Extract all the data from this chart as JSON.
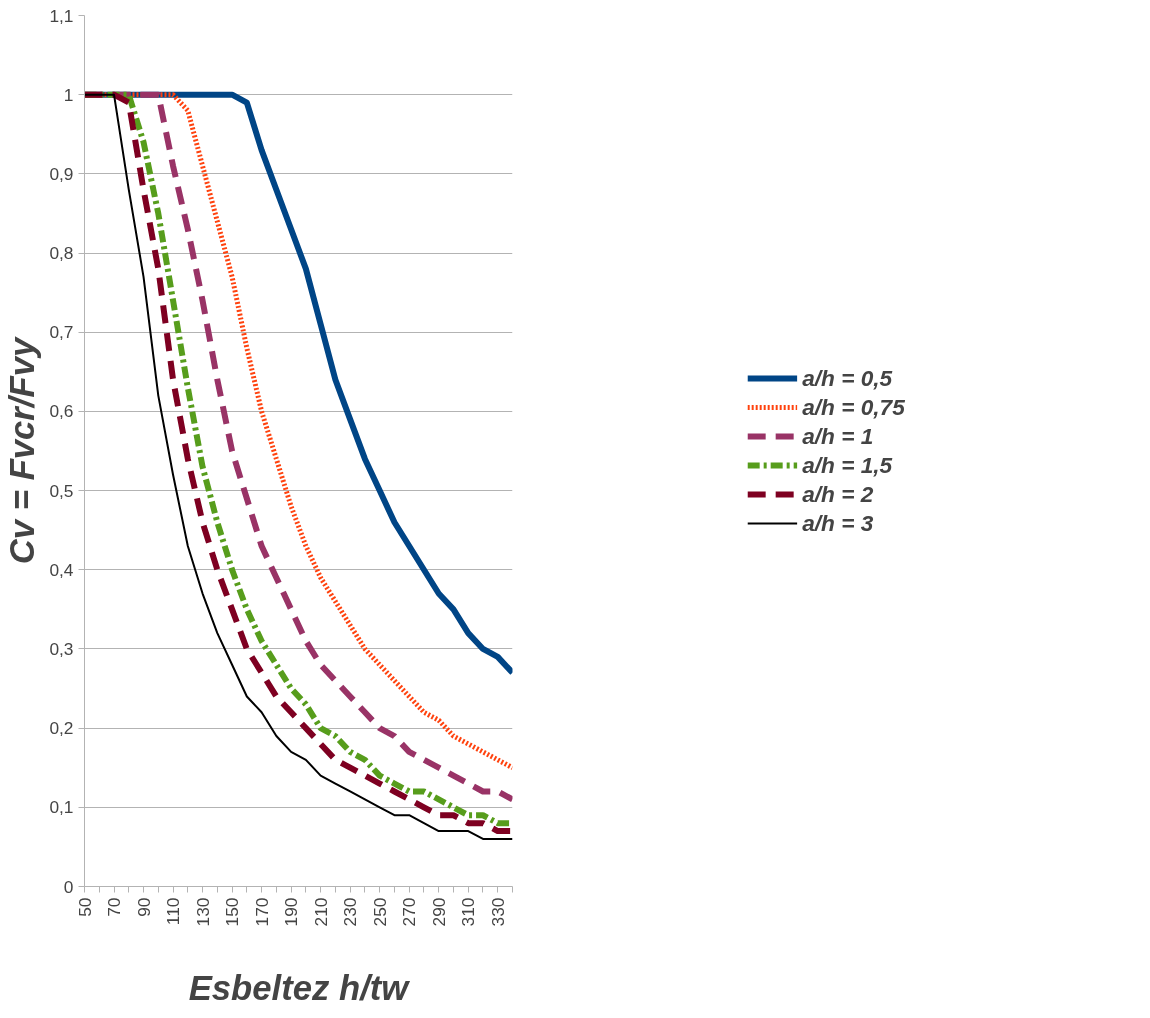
{
  "chart_data": {
    "type": "line",
    "xlabel": "Esbeltez h/tw",
    "ylabel": "Cv = Fvcr/Fvy",
    "x": [
      50,
      60,
      70,
      80,
      90,
      100,
      110,
      120,
      130,
      140,
      150,
      160,
      170,
      180,
      190,
      200,
      210,
      220,
      230,
      240,
      250,
      260,
      270,
      280,
      290,
      300,
      310,
      320,
      330,
      340
    ],
    "series": [
      {
        "name": "a/h = 0,5",
        "color": "#004586",
        "line_style": "solid",
        "values": [
          1,
          1,
          1,
          1,
          1,
          1,
          1,
          1,
          1,
          1,
          1,
          0.99,
          0.93,
          0.88,
          0.83,
          0.78,
          0.71,
          0.64,
          0.59,
          0.54,
          0.5,
          0.46,
          0.43,
          0.4,
          0.37,
          0.35,
          0.32,
          0.3,
          0.29,
          0.27
        ]
      },
      {
        "name": "a/h = 0,75",
        "color": "#ff420e",
        "line_style": "dotted",
        "values": [
          1,
          1,
          1,
          1,
          1,
          1,
          1,
          0.98,
          0.91,
          0.84,
          0.77,
          0.68,
          0.6,
          0.54,
          0.48,
          0.43,
          0.39,
          0.36,
          0.33,
          0.3,
          0.28,
          0.26,
          0.24,
          0.22,
          0.21,
          0.19,
          0.18,
          0.17,
          0.16,
          0.15
        ]
      },
      {
        "name": "a/h = 1",
        "color": "#993366",
        "line_style": "dashed",
        "values": [
          1,
          1,
          1,
          1,
          1,
          1,
          0.91,
          0.83,
          0.74,
          0.64,
          0.55,
          0.49,
          0.43,
          0.39,
          0.35,
          0.31,
          0.28,
          0.26,
          0.24,
          0.22,
          0.2,
          0.19,
          0.17,
          0.16,
          0.15,
          0.14,
          0.13,
          0.12,
          0.12,
          0.11
        ]
      },
      {
        "name": "a/h = 1,5",
        "color": "#579d1c",
        "line_style": "dashdot",
        "values": [
          1,
          1,
          1,
          1,
          0.94,
          0.85,
          0.74,
          0.63,
          0.53,
          0.46,
          0.4,
          0.35,
          0.31,
          0.28,
          0.25,
          0.23,
          0.2,
          0.19,
          0.17,
          0.16,
          0.14,
          0.13,
          0.12,
          0.12,
          0.11,
          0.1,
          0.09,
          0.09,
          0.08,
          0.08
        ]
      },
      {
        "name": "a/h = 2",
        "color": "#7e0021",
        "line_style": "dashed",
        "values": [
          1,
          1,
          1,
          0.99,
          0.88,
          0.78,
          0.64,
          0.54,
          0.46,
          0.4,
          0.35,
          0.3,
          0.27,
          0.24,
          0.22,
          0.2,
          0.18,
          0.16,
          0.15,
          0.14,
          0.13,
          0.12,
          0.11,
          0.1,
          0.09,
          0.09,
          0.08,
          0.08,
          0.07,
          0.07
        ]
      },
      {
        "name": "a/h = 3",
        "color": "#000000",
        "line_style": "solid",
        "values": [
          1,
          1,
          1,
          0.88,
          0.77,
          0.62,
          0.52,
          0.43,
          0.37,
          0.32,
          0.28,
          0.24,
          0.22,
          0.19,
          0.17,
          0.16,
          0.14,
          0.13,
          0.12,
          0.11,
          0.1,
          0.09,
          0.09,
          0.08,
          0.07,
          0.07,
          0.07,
          0.06,
          0.06,
          0.06
        ]
      }
    ],
    "xlim": [
      50,
      340
    ],
    "xticks": [
      50,
      {
        "value": 60,
        "label": null
      },
      70,
      {
        "value": 80,
        "label": null
      },
      90,
      {
        "value": 100,
        "label": null
      },
      110,
      {
        "value": 120,
        "label": null
      },
      130,
      {
        "value": 140,
        "label": null
      },
      150,
      {
        "value": 160,
        "label": null
      },
      170,
      {
        "value": 180,
        "label": null
      },
      190,
      {
        "value": 200,
        "label": null
      },
      210,
      {
        "value": 220,
        "label": null
      },
      230,
      {
        "value": 240,
        "label": null
      },
      250,
      {
        "value": 260,
        "label": null
      },
      270,
      {
        "value": 280,
        "label": null
      },
      290,
      {
        "value": 300,
        "label": null
      },
      310,
      {
        "value": 320,
        "label": null
      },
      330,
      {
        "value": 340,
        "label": null
      }
    ],
    "ylim": [
      0,
      1.1
    ],
    "yticks": [
      0,
      {
        "value": 0.1,
        "label": "0,1"
      },
      {
        "value": 0.2,
        "label": "0,2"
      },
      {
        "value": 0.3,
        "label": "0,3"
      },
      {
        "value": 0.4,
        "label": "0,4"
      },
      {
        "value": 0.5,
        "label": "0,5"
      },
      {
        "value": 0.6,
        "label": "0,6"
      },
      {
        "value": 0.7,
        "label": "0,7"
      },
      {
        "value": 0.8,
        "label": "0,8"
      },
      {
        "value": 0.9,
        "label": "0,9"
      },
      1,
      {
        "value": 1.1,
        "label": "1,1"
      }
    ],
    "grid": "y",
    "legend": "right",
    "marker": "none"
  }
}
